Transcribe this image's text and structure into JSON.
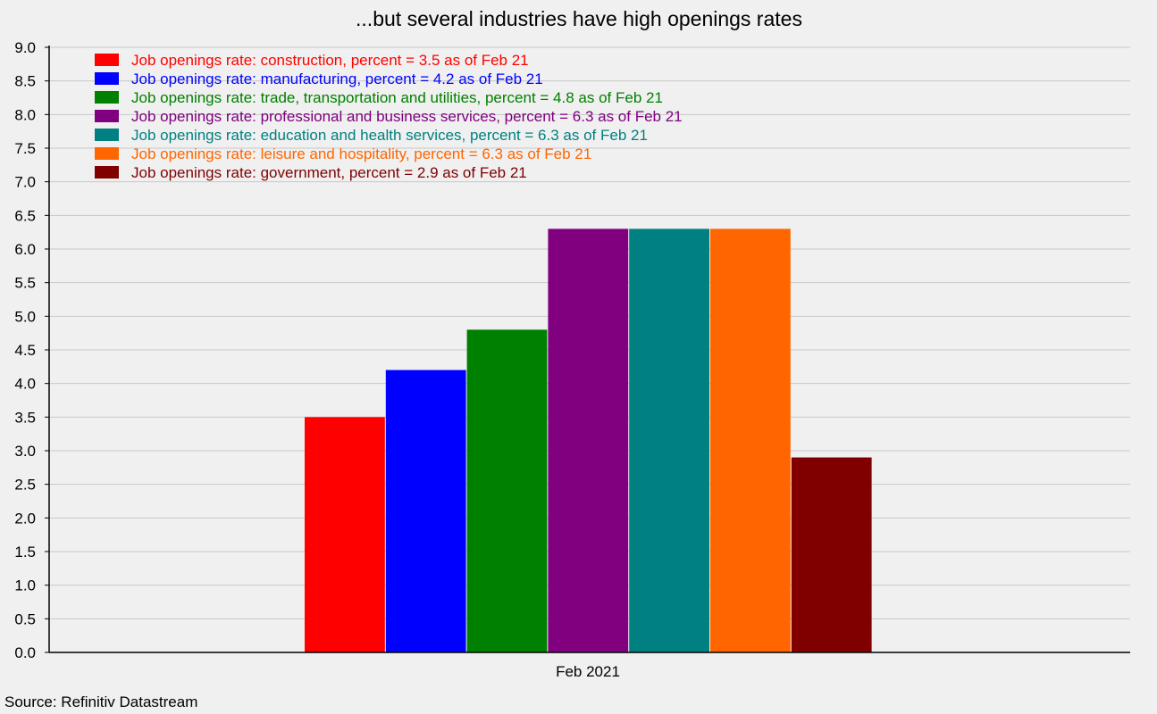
{
  "chart_data": {
    "type": "bar",
    "title": "...but several industries have high openings rates",
    "xlabel": "",
    "ylabel": "",
    "categories": [
      "Feb 2021"
    ],
    "ylim": [
      0,
      9
    ],
    "yticks": [
      "0.0",
      "0.5",
      "1.0",
      "1.5",
      "2.0",
      "2.5",
      "3.0",
      "3.5",
      "4.0",
      "4.5",
      "5.0",
      "5.5",
      "6.0",
      "6.5",
      "7.0",
      "7.5",
      "8.0",
      "8.5",
      "9.0"
    ],
    "grid": true,
    "legend_position": "top-left",
    "series": [
      {
        "name": "Job openings rate: construction, percent = 3.5 as of Feb 21",
        "values": [
          3.5
        ],
        "color": "#ff0000"
      },
      {
        "name": "Job openings rate: manufacturing, percent = 4.2 as of Feb 21",
        "values": [
          4.2
        ],
        "color": "#0000ff"
      },
      {
        "name": "Job openings rate: trade, transportation and utilities, percent = 4.8 as of Feb 21",
        "values": [
          4.8
        ],
        "color": "#008000"
      },
      {
        "name": "Job openings rate: professional and business services, percent = 6.3 as of Feb 21",
        "values": [
          6.3
        ],
        "color": "#800080"
      },
      {
        "name": "Job openings rate: education and health services, percent = 6.3 as of Feb 21",
        "values": [
          6.3
        ],
        "color": "#008080"
      },
      {
        "name": "Job openings rate: leisure and hospitality, percent = 6.3 as of Feb 21",
        "values": [
          6.3
        ],
        "color": "#ff6600"
      },
      {
        "name": "Job openings rate: government, percent = 2.9 as of Feb 21",
        "values": [
          2.9
        ],
        "color": "#800000"
      }
    ],
    "source": "Source: Refinitiv Datastream"
  }
}
